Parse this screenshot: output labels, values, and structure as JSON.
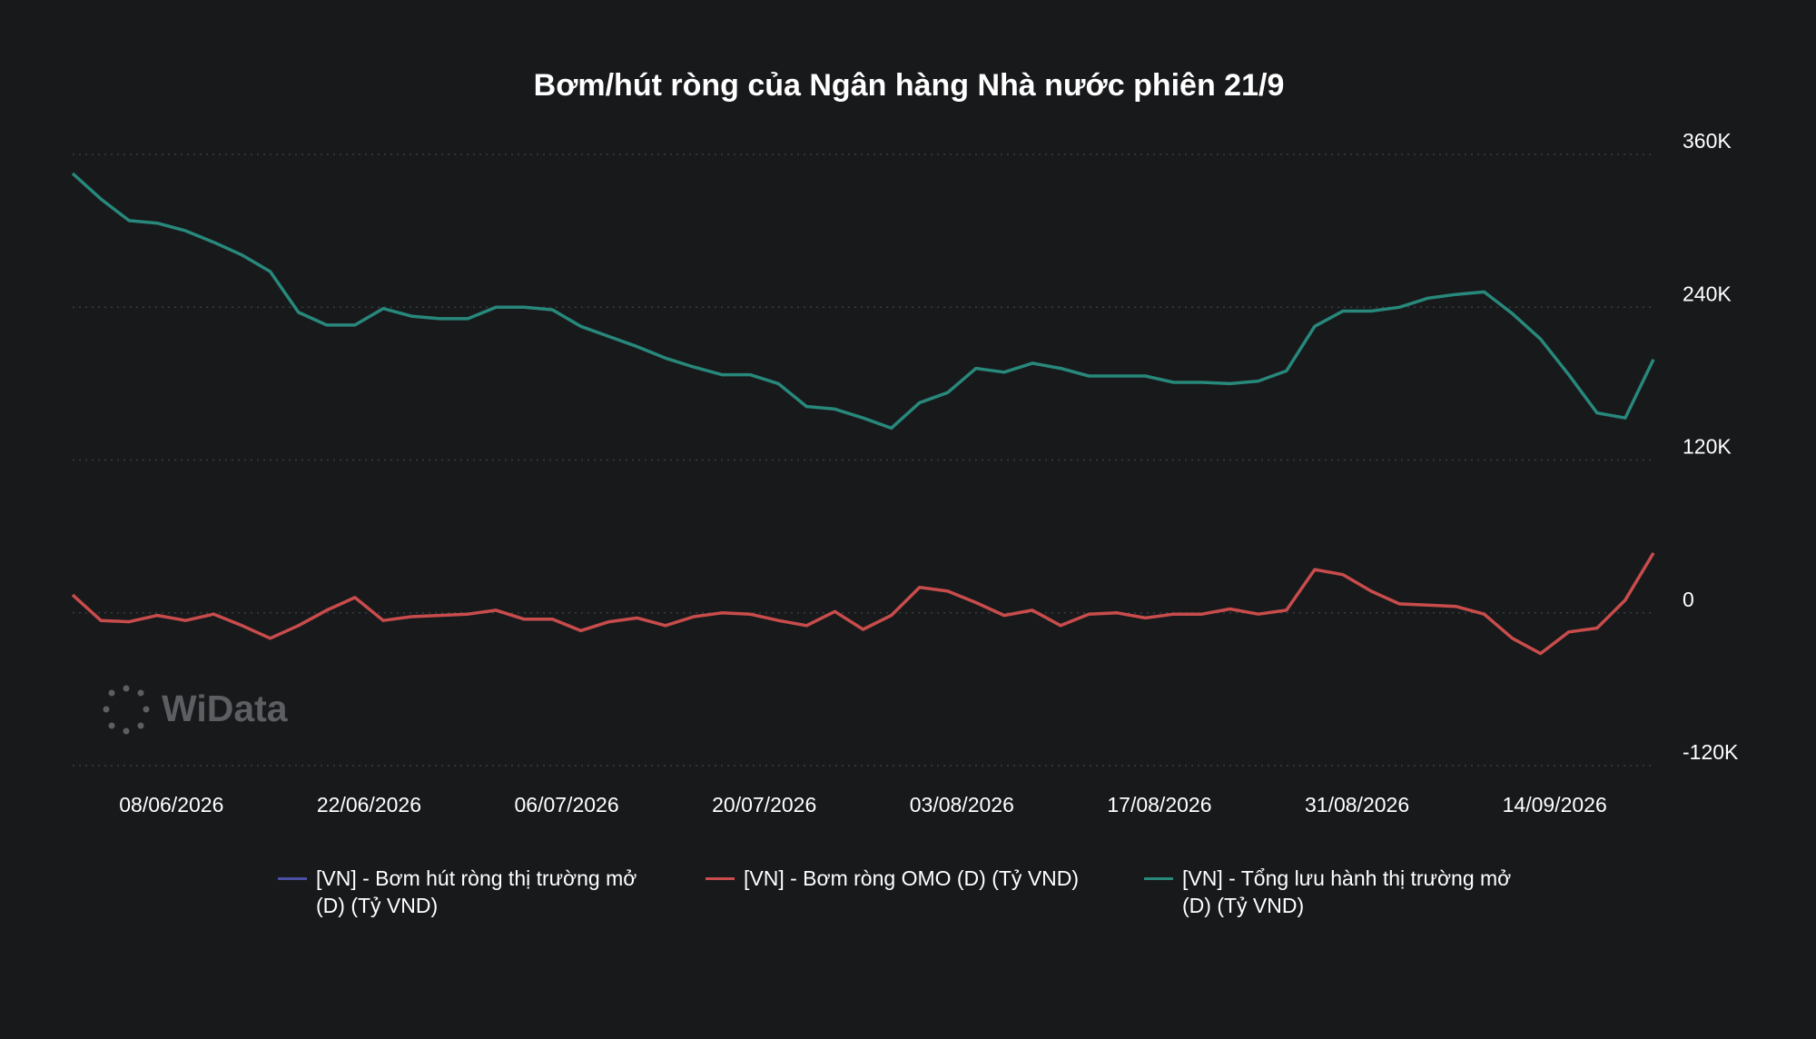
{
  "chart_data": {
    "type": "line",
    "title": "Bơm/hút ròng của Ngân hàng Nhà nước phiên 21/9",
    "watermark": "WiData",
    "x": [
      "01/06/2026",
      "03/06/2026",
      "05/06/2026",
      "07/06/2026",
      "09/06/2026",
      "11/06/2026",
      "13/06/2026",
      "15/06/2026",
      "17/06/2026",
      "19/06/2026",
      "21/06/2026",
      "23/06/2026",
      "25/06/2026",
      "27/06/2026",
      "29/06/2026",
      "01/07/2026",
      "03/07/2026",
      "05/07/2026",
      "07/07/2026",
      "09/07/2026",
      "11/07/2026",
      "13/07/2026",
      "15/07/2026",
      "17/07/2026",
      "19/07/2026",
      "21/07/2026",
      "23/07/2026",
      "25/07/2026",
      "27/07/2026",
      "29/07/2026",
      "31/07/2026",
      "02/08/2026",
      "04/08/2026",
      "06/08/2026",
      "08/08/2026",
      "10/08/2026",
      "12/08/2026",
      "14/08/2026",
      "16/08/2026",
      "18/08/2026",
      "20/08/2026",
      "22/08/2026",
      "24/08/2026",
      "26/08/2026",
      "28/08/2026",
      "30/08/2026",
      "01/09/2026",
      "03/09/2026",
      "05/09/2026",
      "07/09/2026",
      "09/09/2026",
      "11/09/2026",
      "13/09/2026",
      "15/09/2026",
      "17/09/2026",
      "19/09/2026",
      "21/09/2026"
    ],
    "xticks": [
      "08/06/2026",
      "22/06/2026",
      "06/07/2026",
      "20/07/2026",
      "03/08/2026",
      "17/08/2026",
      "31/08/2026",
      "14/09/2026"
    ],
    "ylim": [
      -120000,
      360000
    ],
    "yticks": [
      {
        "value": -120000,
        "label": "-120K"
      },
      0,
      {
        "value": 120000,
        "label": "120K"
      },
      {
        "value": 240000,
        "label": "240K"
      },
      {
        "value": 360000,
        "label": "360K"
      }
    ],
    "grid": true,
    "series": [
      {
        "name": "[VN] - Bơm hút ròng thị trường mở (D) (Tỷ VND)",
        "color": "#4b4fa3",
        "values": [
          null,
          null,
          null,
          null,
          null,
          null,
          null,
          null,
          null,
          null,
          null,
          null,
          null,
          null,
          null,
          null,
          null,
          null,
          null,
          null,
          null,
          null,
          null,
          null,
          null,
          null,
          null,
          null,
          null,
          null,
          null,
          null,
          null,
          null,
          null,
          null,
          null,
          null,
          null,
          null,
          null,
          null,
          null,
          null,
          null,
          null,
          null,
          null,
          null,
          null,
          null,
          null,
          null,
          null,
          null,
          null,
          null
        ]
      },
      {
        "name": "[VN] - Bơm ròng OMO (D) (Tỷ VND)",
        "color": "#c94c4c",
        "values": [
          14000,
          -6000,
          -7000,
          -2000,
          -6000,
          -1000,
          -10000,
          -20000,
          -10000,
          2000,
          12000,
          -6000,
          -3000,
          -2000,
          -1000,
          2000,
          -5000,
          -5000,
          -14000,
          -7000,
          -4000,
          -10000,
          -3000,
          0,
          -1000,
          -6000,
          -10000,
          1000,
          -13000,
          -2000,
          20000,
          17000,
          8000,
          -2000,
          2000,
          -10000,
          -1000,
          0,
          -4000,
          -1000,
          -1000,
          3000,
          -1000,
          2000,
          34000,
          30000,
          17000,
          7000,
          6000,
          5000,
          -1000,
          -20000,
          -32000,
          -15000,
          -12000,
          10000,
          47000
        ]
      },
      {
        "name": "[VN] - Tổng lưu hành thị trường mở (D) (Tỷ VND)",
        "color": "#27887b",
        "values": [
          345000,
          325000,
          308000,
          306000,
          300000,
          291000,
          281000,
          268000,
          236000,
          226000,
          226000,
          239000,
          233000,
          231000,
          231000,
          240000,
          240000,
          238000,
          225000,
          217000,
          209000,
          200000,
          193000,
          187000,
          187000,
          180000,
          162000,
          160000,
          153000,
          145000,
          165000,
          173000,
          192000,
          189000,
          196000,
          192000,
          186000,
          186000,
          186000,
          181000,
          181000,
          180000,
          182000,
          190000,
          225000,
          237000,
          237000,
          240000,
          247000,
          250000,
          252000,
          235000,
          215000,
          187000,
          157000,
          153000,
          199000
        ]
      }
    ]
  }
}
